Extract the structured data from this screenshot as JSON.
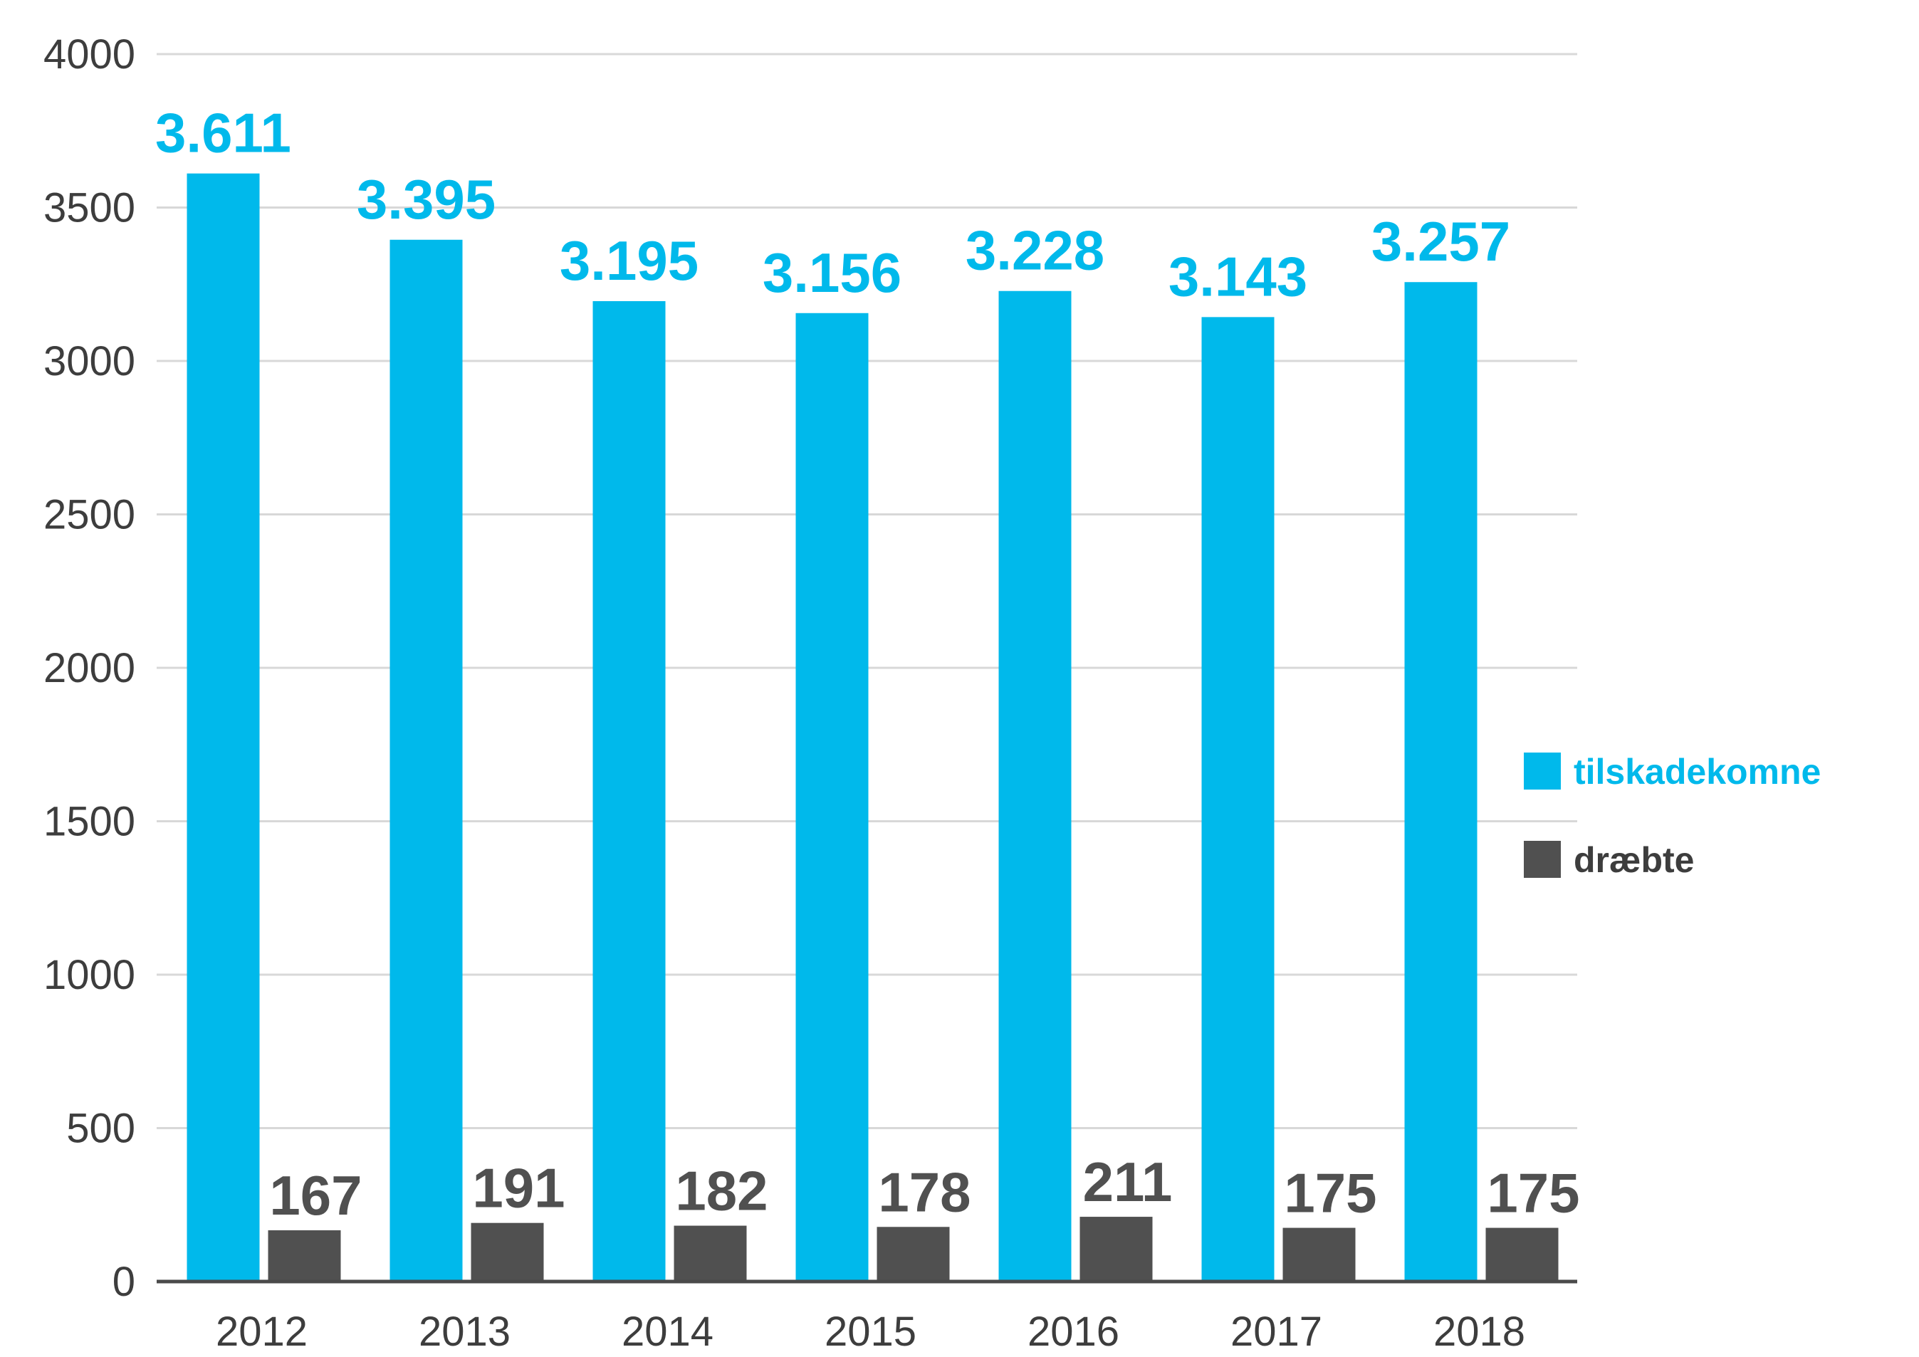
{
  "chart_data": {
    "type": "bar",
    "categories": [
      "2012",
      "2013",
      "2014",
      "2015",
      "2016",
      "2017",
      "2018"
    ],
    "series": [
      {
        "name": "tilskadekomne",
        "values": [
          3611,
          3395,
          3195,
          3156,
          3228,
          3143,
          3257
        ],
        "labels": [
          "3.611",
          "3.395",
          "3.195",
          "3.156",
          "3.228",
          "3.143",
          "3.257"
        ],
        "color": "#00b9eb"
      },
      {
        "name": "dræbte",
        "values": [
          167,
          191,
          182,
          178,
          211,
          175,
          175
        ],
        "labels": [
          "167",
          "191",
          "182",
          "178",
          "211",
          "175",
          "175"
        ],
        "color": "#505050"
      }
    ],
    "ylim": [
      0,
      4000
    ],
    "yticks": [
      "0",
      "500",
      "1000",
      "1500",
      "2000",
      "2500",
      "3000",
      "3500",
      "4000"
    ],
    "title": "",
    "xlabel": "",
    "ylabel": "",
    "grid": true,
    "legend_position": "right"
  },
  "colors": {
    "grid": "#d8d8d8",
    "axis": "#4a4a4a",
    "tick_text": "#3d3d3d"
  }
}
